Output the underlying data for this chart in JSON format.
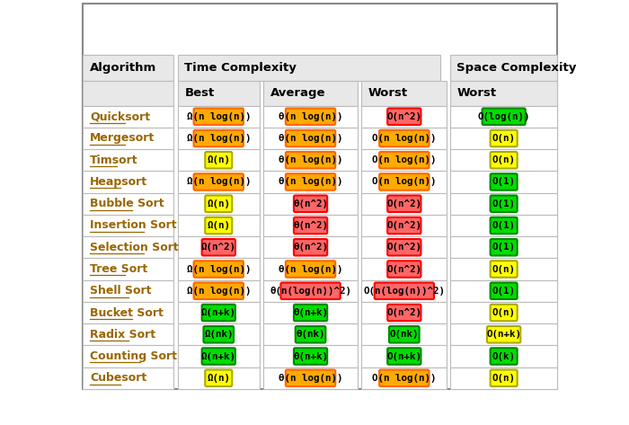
{
  "data": [
    {
      "name": "Quicksort",
      "best": {
        "text": "Ω(n log(n))",
        "color": "#FFAA00"
      },
      "average": {
        "text": "θ(n log(n))",
        "color": "#FFAA00"
      },
      "worst": {
        "text": "O(n^2)",
        "color": "#FF6666"
      },
      "space_worst": {
        "text": "O(log(n))",
        "color": "#00DD00"
      }
    },
    {
      "name": "Mergesort",
      "best": {
        "text": "Ω(n log(n))",
        "color": "#FFAA00"
      },
      "average": {
        "text": "θ(n log(n))",
        "color": "#FFAA00"
      },
      "worst": {
        "text": "O(n log(n))",
        "color": "#FFAA00"
      },
      "space_worst": {
        "text": "O(n)",
        "color": "#FFFF00"
      }
    },
    {
      "name": "Timsort",
      "best": {
        "text": "Ω(n)",
        "color": "#FFFF00"
      },
      "average": {
        "text": "θ(n log(n))",
        "color": "#FFAA00"
      },
      "worst": {
        "text": "O(n log(n))",
        "color": "#FFAA00"
      },
      "space_worst": {
        "text": "O(n)",
        "color": "#FFFF00"
      }
    },
    {
      "name": "Heapsort",
      "best": {
        "text": "Ω(n log(n))",
        "color": "#FFAA00"
      },
      "average": {
        "text": "θ(n log(n))",
        "color": "#FFAA00"
      },
      "worst": {
        "text": "O(n log(n))",
        "color": "#FFAA00"
      },
      "space_worst": {
        "text": "O(1)",
        "color": "#00DD00"
      }
    },
    {
      "name": "Bubble Sort",
      "best": {
        "text": "Ω(n)",
        "color": "#FFFF00"
      },
      "average": {
        "text": "θ(n^2)",
        "color": "#FF6666"
      },
      "worst": {
        "text": "O(n^2)",
        "color": "#FF6666"
      },
      "space_worst": {
        "text": "O(1)",
        "color": "#00DD00"
      }
    },
    {
      "name": "Insertion Sort",
      "best": {
        "text": "Ω(n)",
        "color": "#FFFF00"
      },
      "average": {
        "text": "θ(n^2)",
        "color": "#FF6666"
      },
      "worst": {
        "text": "O(n^2)",
        "color": "#FF6666"
      },
      "space_worst": {
        "text": "O(1)",
        "color": "#00DD00"
      }
    },
    {
      "name": "Selection Sort",
      "best": {
        "text": "Ω(n^2)",
        "color": "#FF6666"
      },
      "average": {
        "text": "θ(n^2)",
        "color": "#FF6666"
      },
      "worst": {
        "text": "O(n^2)",
        "color": "#FF6666"
      },
      "space_worst": {
        "text": "O(1)",
        "color": "#00DD00"
      }
    },
    {
      "name": "Tree Sort",
      "best": {
        "text": "Ω(n log(n))",
        "color": "#FFAA00"
      },
      "average": {
        "text": "θ(n log(n))",
        "color": "#FFAA00"
      },
      "worst": {
        "text": "O(n^2)",
        "color": "#FF6666"
      },
      "space_worst": {
        "text": "O(n)",
        "color": "#FFFF00"
      }
    },
    {
      "name": "Shell Sort",
      "best": {
        "text": "Ω(n log(n))",
        "color": "#FFAA00"
      },
      "average": {
        "text": "θ(n(log(n))^2)",
        "color": "#FF6666"
      },
      "worst": {
        "text": "O(n(log(n))^2)",
        "color": "#FF6666"
      },
      "space_worst": {
        "text": "O(1)",
        "color": "#00DD00"
      }
    },
    {
      "name": "Bucket Sort",
      "best": {
        "text": "Ω(n+k)",
        "color": "#00DD00"
      },
      "average": {
        "text": "θ(n+k)",
        "color": "#00DD00"
      },
      "worst": {
        "text": "O(n^2)",
        "color": "#FF6666"
      },
      "space_worst": {
        "text": "O(n)",
        "color": "#FFFF00"
      }
    },
    {
      "name": "Radix Sort",
      "best": {
        "text": "Ω(nk)",
        "color": "#00DD00"
      },
      "average": {
        "text": "θ(nk)",
        "color": "#00DD00"
      },
      "worst": {
        "text": "O(nk)",
        "color": "#00DD00"
      },
      "space_worst": {
        "text": "O(n+k)",
        "color": "#FFFF00"
      }
    },
    {
      "name": "Counting Sort",
      "best": {
        "text": "Ω(n+k)",
        "color": "#00DD00"
      },
      "average": {
        "text": "θ(n+k)",
        "color": "#00DD00"
      },
      "worst": {
        "text": "O(n+k)",
        "color": "#00DD00"
      },
      "space_worst": {
        "text": "O(k)",
        "color": "#00DD00"
      }
    },
    {
      "name": "Cubesort",
      "best": {
        "text": "Ω(n)",
        "color": "#FFFF00"
      },
      "average": {
        "text": "θ(n log(n))",
        "color": "#FFAA00"
      },
      "worst": {
        "text": "O(n log(n))",
        "color": "#FFAA00"
      },
      "space_worst": {
        "text": "O(n)",
        "color": "#FFFF00"
      }
    }
  ],
  "badge_border": {
    "#FF6666": "#FF0000",
    "#FFAA00": "#FF6600",
    "#FFFF00": "#AAAA00",
    "#00DD00": "#008800"
  },
  "bg_color": "#FFFFFF",
  "header_bg": "#E8E8E8",
  "row_bg_even": "#FFFFFF",
  "row_bg_odd": "#FFFFFF",
  "border_color": "#BBBBBB",
  "algo_color": "#996600",
  "algo_underline_color": "#996600",
  "header_font_size": 9.5,
  "badge_font_size": 7.8,
  "algo_font_size": 9.0,
  "fig_width": 7.0,
  "fig_height": 4.73,
  "dpi": 100
}
